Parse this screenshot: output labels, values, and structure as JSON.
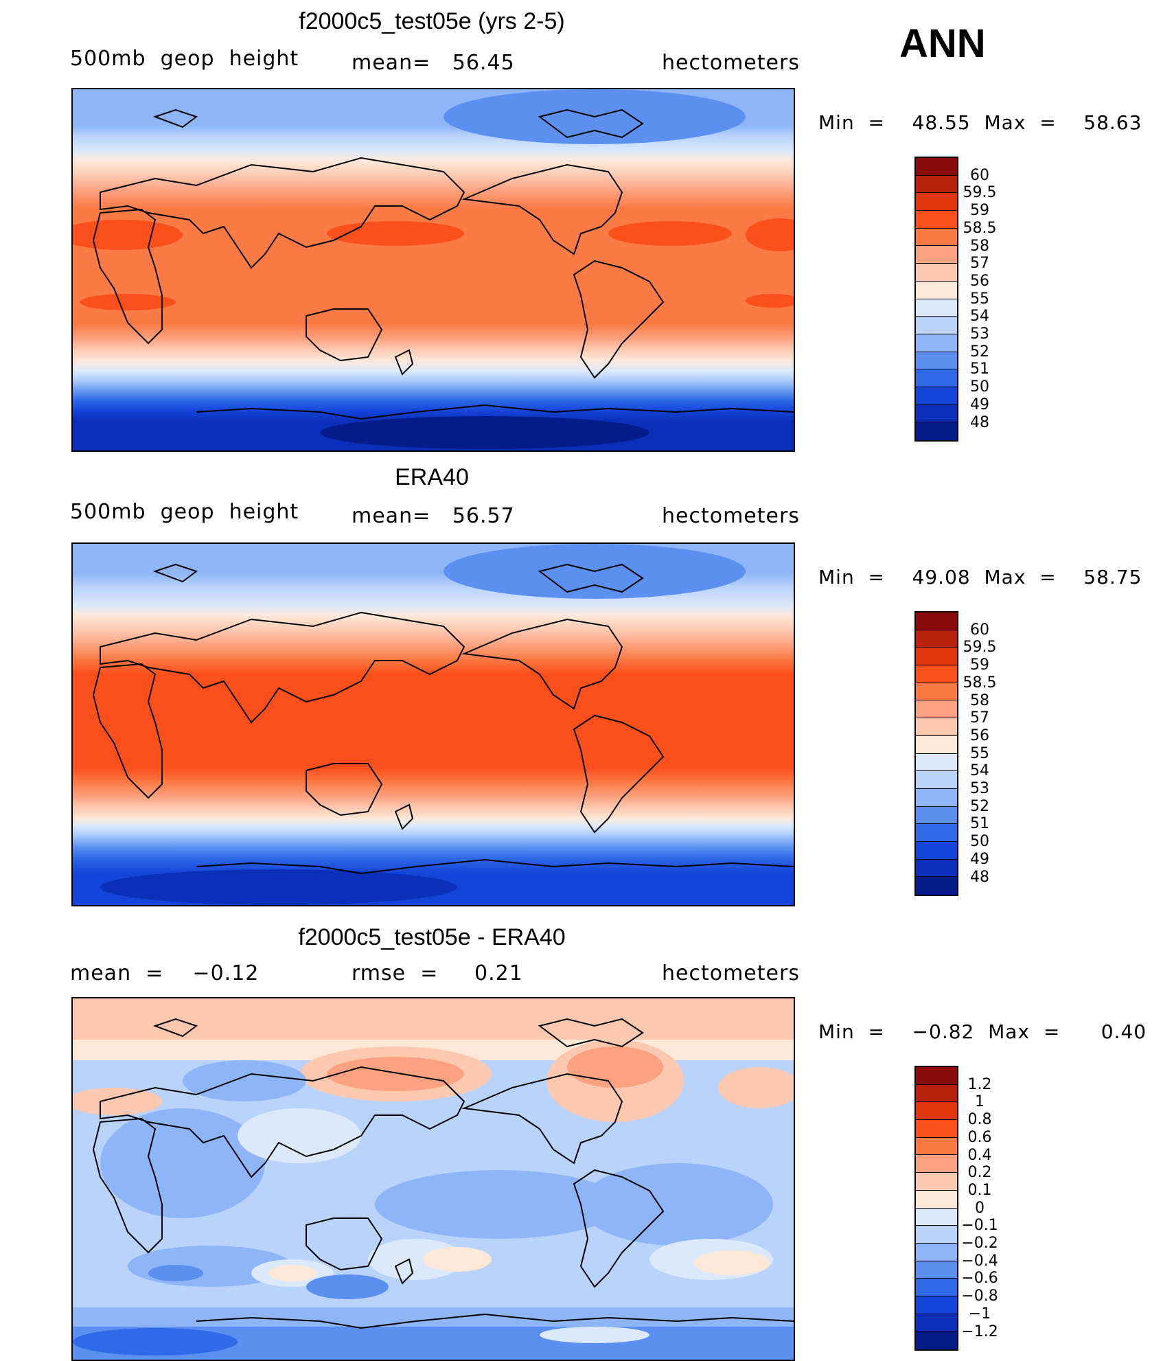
{
  "season": "ANN",
  "panels": [
    {
      "title": "f2000c5_test05e (yrs 2-5)",
      "left_text": "500mb  geop  height",
      "center_text": "mean=   56.45",
      "right_text": "hectometers",
      "minmax": "Min  =    48.55  Max  =    58.63",
      "colorbar": {
        "labels": [
          "60",
          "59.5",
          "59",
          "58.5",
          "58",
          "57",
          "56",
          "55",
          "54",
          "53",
          "52",
          "51",
          "50",
          "49",
          "48"
        ],
        "colors": [
          "#8b0a0a",
          "#b8210c",
          "#e0360e",
          "#fb4f1c",
          "#fb7a45",
          "#fca280",
          "#fdc8b0",
          "#fee8d8",
          "#dce9fb",
          "#b9d3fb",
          "#8db5f8",
          "#5b90f0",
          "#2f6ae8",
          "#1545d8",
          "#0a2fb8",
          "#061b8a"
        ]
      }
    },
    {
      "title": "ERA40",
      "left_text": "500mb  geop  height",
      "center_text": "mean=   56.57",
      "right_text": "hectometers",
      "minmax": "Min  =    49.08  Max  =    58.75",
      "colorbar": {
        "labels": [
          "60",
          "59.5",
          "59",
          "58.5",
          "58",
          "57",
          "56",
          "55",
          "54",
          "53",
          "52",
          "51",
          "50",
          "49",
          "48"
        ],
        "colors": [
          "#8b0a0a",
          "#b8210c",
          "#e0360e",
          "#fb4f1c",
          "#fb7a45",
          "#fca280",
          "#fdc8b0",
          "#fee8d8",
          "#dce9fb",
          "#b9d3fb",
          "#8db5f8",
          "#5b90f0",
          "#2f6ae8",
          "#1545d8",
          "#0a2fb8",
          "#061b8a"
        ]
      }
    },
    {
      "title": "f2000c5_test05e - ERA40",
      "left_text": "mean  =    −0.12",
      "center_text": "rmse  =     0.21",
      "right_text": "hectometers",
      "minmax": "Min  =    −0.82  Max  =      0.40",
      "colorbar": {
        "labels": [
          "1.2",
          "1",
          "0.8",
          "0.6",
          "0.4",
          "0.2",
          "0.1",
          "0",
          "−0.1",
          "−0.2",
          "−0.4",
          "−0.6",
          "−0.8",
          "−1",
          "−1.2"
        ],
        "colors": [
          "#8b0a0a",
          "#b8210c",
          "#e0360e",
          "#fb4f1c",
          "#fb7a45",
          "#fca280",
          "#fdc8b0",
          "#fee8d8",
          "#dce9fb",
          "#b9d3fb",
          "#8db5f8",
          "#5b90f0",
          "#2f6ae8",
          "#1545d8",
          "#0a2fb8",
          "#061b8a"
        ]
      }
    }
  ]
}
